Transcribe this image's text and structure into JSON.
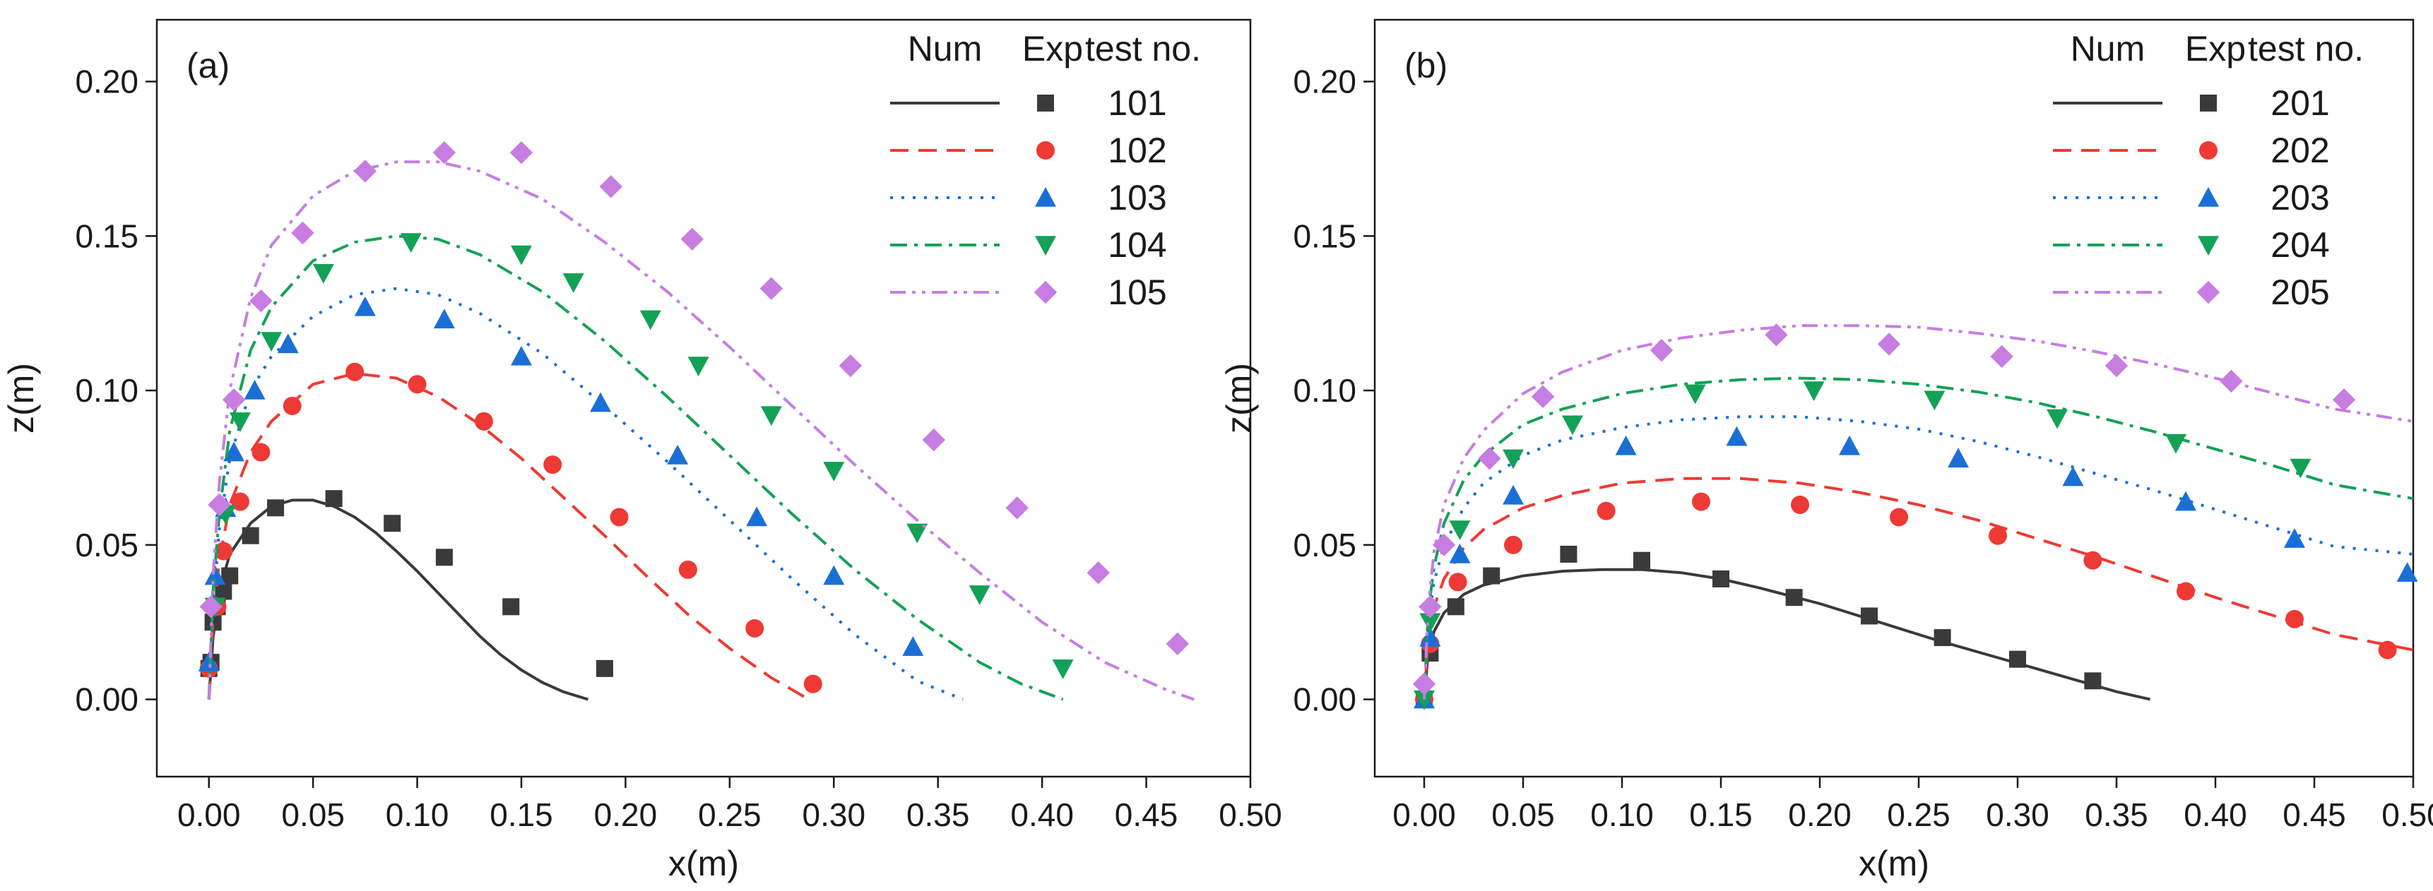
{
  "figure_description": "Jet trajectories: numerical (lines) vs experimental (markers)",
  "styles": {
    "series_colors": [
      "#3a3a3a",
      "#ee3a34",
      "#1a6fd6",
      "#13a157",
      "#c77de2"
    ],
    "line_dash_names": [
      "solid",
      "dash",
      "dot",
      "dash-dot",
      "dash-dot-dot"
    ],
    "marker_names": [
      "square",
      "circle",
      "triangle-up",
      "triangle-down",
      "diamond"
    ]
  },
  "chart_data": [
    {
      "type": "scatter",
      "panel_label": "(a)",
      "xlabel": "x(m)",
      "ylabel": "z(m)",
      "xlim": [
        -0.025,
        0.5
      ],
      "ylim": [
        -0.025,
        0.22
      ],
      "xticks": [
        "0.00",
        "0.05",
        "0.10",
        "0.15",
        "0.20",
        "0.25",
        "0.30",
        "0.35",
        "0.40",
        "0.45",
        "0.50"
      ],
      "yticks": [
        "0.00",
        "0.05",
        "0.10",
        "0.15",
        "0.20"
      ],
      "xtick_values": [
        0,
        0.05,
        0.1,
        0.15,
        0.2,
        0.25,
        0.3,
        0.35,
        0.4,
        0.45,
        0.5
      ],
      "ytick_values": [
        0,
        0.05,
        0.1,
        0.15,
        0.2
      ],
      "legend": {
        "placement": "top-right",
        "headers": [
          "Num",
          "Exp",
          "test no."
        ]
      },
      "series": [
        {
          "name": "101",
          "num": {
            "x": [
              0,
              0.002,
              0.005,
              0.01,
              0.02,
              0.03,
              0.04,
              0.05,
              0.06,
              0.07,
              0.08,
              0.09,
              0.1,
              0.11,
              0.12,
              0.13,
              0.14,
              0.15,
              0.16,
              0.17,
              0.182
            ],
            "y": [
              0,
              0.02,
              0.035,
              0.047,
              0.057,
              0.0625,
              0.0645,
              0.0645,
              0.0625,
              0.059,
              0.054,
              0.048,
              0.0415,
              0.0345,
              0.0275,
              0.0205,
              0.0145,
              0.0095,
              0.0055,
              0.0025,
              0
            ]
          },
          "exp": {
            "x": [
              0,
              0.001,
              0.002,
              0.004,
              0.007,
              0.01,
              0.02,
              0.032,
              0.06,
              0.088,
              0.113,
              0.145,
              0.19
            ],
            "y": [
              0.01,
              0.012,
              0.025,
              0.03,
              0.035,
              0.04,
              0.053,
              0.062,
              0.065,
              0.057,
              0.046,
              0.03,
              0.01
            ]
          }
        },
        {
          "name": "102",
          "num": {
            "x": [
              0,
              0.002,
              0.005,
              0.01,
              0.02,
              0.03,
              0.05,
              0.07,
              0.09,
              0.11,
              0.13,
              0.15,
              0.17,
              0.19,
              0.21,
              0.23,
              0.25,
              0.27,
              0.288
            ],
            "y": [
              0,
              0.025,
              0.045,
              0.063,
              0.08,
              0.09,
              0.102,
              0.1055,
              0.104,
              0.098,
              0.089,
              0.078,
              0.0655,
              0.053,
              0.04,
              0.0275,
              0.0165,
              0.007,
              0
            ]
          },
          "exp": {
            "x": [
              0,
              0.004,
              0.007,
              0.015,
              0.025,
              0.04,
              0.07,
              0.1,
              0.132,
              0.165,
              0.197,
              0.23,
              0.262,
              0.29
            ],
            "y": [
              0.01,
              0.03,
              0.048,
              0.064,
              0.08,
              0.095,
              0.106,
              0.102,
              0.09,
              0.076,
              0.059,
              0.042,
              0.023,
              0.005
            ]
          }
        },
        {
          "name": "103",
          "num": {
            "x": [
              0,
              0.002,
              0.005,
              0.01,
              0.02,
              0.03,
              0.05,
              0.07,
              0.09,
              0.11,
              0.13,
              0.16,
              0.19,
              0.22,
              0.25,
              0.28,
              0.31,
              0.34,
              0.362
            ],
            "y": [
              0,
              0.03,
              0.055,
              0.078,
              0.1,
              0.111,
              0.124,
              0.131,
              0.133,
              0.131,
              0.125,
              0.112,
              0.095,
              0.077,
              0.058,
              0.039,
              0.021,
              0.006,
              0
            ]
          },
          "exp": {
            "x": [
              0,
              0.003,
              0.008,
              0.012,
              0.022,
              0.038,
              0.075,
              0.113,
              0.15,
              0.188,
              0.225,
              0.263,
              0.3,
              0.338
            ],
            "y": [
              0.012,
              0.04,
              0.062,
              0.08,
              0.1,
              0.115,
              0.127,
              0.123,
              0.111,
              0.096,
              0.079,
              0.059,
              0.04,
              0.017
            ]
          }
        },
        {
          "name": "104",
          "num": {
            "x": [
              0,
              0.002,
              0.005,
              0.01,
              0.02,
              0.03,
              0.05,
              0.07,
              0.09,
              0.11,
              0.13,
              0.16,
              0.19,
              0.22,
              0.25,
              0.28,
              0.31,
              0.34,
              0.37,
              0.39,
              0.41
            ],
            "y": [
              0,
              0.035,
              0.06,
              0.087,
              0.113,
              0.127,
              0.142,
              0.148,
              0.15,
              0.149,
              0.144,
              0.132,
              0.116,
              0.098,
              0.079,
              0.06,
              0.042,
              0.026,
              0.012,
              0.005,
              0
            ]
          },
          "exp": {
            "x": [
              0.003,
              0.008,
              0.015,
              0.03,
              0.055,
              0.097,
              0.15,
              0.175,
              0.212,
              0.235,
              0.27,
              0.3,
              0.34,
              0.37,
              0.41
            ],
            "y": [
              0.03,
              0.06,
              0.09,
              0.116,
              0.138,
              0.148,
              0.144,
              0.135,
              0.123,
              0.108,
              0.092,
              0.074,
              0.054,
              0.034,
              0.01
            ]
          }
        },
        {
          "name": "105",
          "num": {
            "x": [
              0,
              0.002,
              0.005,
              0.01,
              0.02,
              0.03,
              0.05,
              0.07,
              0.09,
              0.11,
              0.13,
              0.16,
              0.19,
              0.22,
              0.25,
              0.28,
              0.31,
              0.34,
              0.37,
              0.4,
              0.43,
              0.46,
              0.473
            ],
            "y": [
              0,
              0.04,
              0.07,
              0.1,
              0.13,
              0.147,
              0.163,
              0.171,
              0.174,
              0.174,
              0.171,
              0.162,
              0.148,
              0.132,
              0.114,
              0.095,
              0.076,
              0.058,
              0.041,
              0.025,
              0.012,
              0.003,
              0
            ]
          },
          "exp": {
            "x": [
              0.001,
              0.005,
              0.012,
              0.025,
              0.045,
              0.075,
              0.113,
              0.15,
              0.193,
              0.232,
              0.27,
              0.308,
              0.348,
              0.388,
              0.427,
              0.465
            ],
            "y": [
              0.03,
              0.063,
              0.097,
              0.129,
              0.151,
              0.171,
              0.177,
              0.177,
              0.166,
              0.149,
              0.133,
              0.108,
              0.084,
              0.062,
              0.041,
              0.018
            ]
          }
        }
      ]
    },
    {
      "type": "scatter",
      "panel_label": "(b)",
      "xlabel": "x(m)",
      "ylabel": "z(m)",
      "xlim": [
        -0.025,
        0.5
      ],
      "ylim": [
        -0.025,
        0.22
      ],
      "xticks": [
        "0.00",
        "0.05",
        "0.10",
        "0.15",
        "0.20",
        "0.25",
        "0.30",
        "0.35",
        "0.40",
        "0.45",
        "0.50"
      ],
      "yticks": [
        "0.00",
        "0.05",
        "0.10",
        "0.15",
        "0.20"
      ],
      "xtick_values": [
        0,
        0.05,
        0.1,
        0.15,
        0.2,
        0.25,
        0.3,
        0.35,
        0.4,
        0.45,
        0.5
      ],
      "ytick_values": [
        0,
        0.05,
        0.1,
        0.15,
        0.2
      ],
      "legend": {
        "placement": "top-right",
        "headers": [
          "Num",
          "Exp",
          "test no."
        ]
      },
      "series": [
        {
          "name": "201",
          "num": {
            "x": [
              0,
              0.002,
              0.005,
              0.01,
              0.02,
              0.03,
              0.05,
              0.07,
              0.09,
              0.11,
              0.13,
              0.15,
              0.17,
              0.2,
              0.23,
              0.26,
              0.29,
              0.32,
              0.35,
              0.367
            ],
            "y": [
              0,
              0.015,
              0.022,
              0.028,
              0.034,
              0.037,
              0.04,
              0.0415,
              0.042,
              0.042,
              0.041,
              0.039,
              0.036,
              0.031,
              0.025,
              0.019,
              0.0135,
              0.008,
              0.0025,
              0
            ]
          },
          "exp": {
            "x": [
              0,
              0.003,
              0.016,
              0.034,
              0.073,
              0.11,
              0.15,
              0.187,
              0.225,
              0.262,
              0.3,
              0.338
            ],
            "y": [
              0,
              0.015,
              0.03,
              0.04,
              0.047,
              0.045,
              0.039,
              0.033,
              0.027,
              0.02,
              0.013,
              0.006
            ]
          }
        },
        {
          "name": "202",
          "num": {
            "x": [
              0,
              0.002,
              0.005,
              0.01,
              0.02,
              0.03,
              0.05,
              0.07,
              0.1,
              0.13,
              0.16,
              0.19,
              0.22,
              0.25,
              0.28,
              0.31,
              0.34,
              0.37,
              0.4,
              0.43,
              0.46,
              0.5
            ],
            "y": [
              0,
              0.02,
              0.03,
              0.039,
              0.049,
              0.055,
              0.062,
              0.066,
              0.07,
              0.0715,
              0.0715,
              0.07,
              0.067,
              0.063,
              0.058,
              0.052,
              0.046,
              0.0395,
              0.033,
              0.027,
              0.021,
              0.016
            ]
          },
          "exp": {
            "x": [
              0,
              0.003,
              0.017,
              0.045,
              0.092,
              0.14,
              0.19,
              0.24,
              0.29,
              0.338,
              0.385,
              0.44,
              0.487
            ],
            "y": [
              0,
              0.018,
              0.038,
              0.05,
              0.061,
              0.064,
              0.063,
              0.059,
              0.053,
              0.045,
              0.035,
              0.026,
              0.016
            ]
          }
        },
        {
          "name": "203",
          "num": {
            "x": [
              0,
              0.002,
              0.005,
              0.01,
              0.02,
              0.03,
              0.05,
              0.07,
              0.1,
              0.13,
              0.16,
              0.19,
              0.22,
              0.25,
              0.28,
              0.31,
              0.34,
              0.37,
              0.4,
              0.43,
              0.46,
              0.5
            ],
            "y": [
              0,
              0.025,
              0.038,
              0.05,
              0.062,
              0.07,
              0.079,
              0.084,
              0.088,
              0.0905,
              0.0915,
              0.0915,
              0.09,
              0.0875,
              0.0835,
              0.0785,
              0.073,
              0.0675,
              0.0615,
              0.0555,
              0.0495,
              0.047
            ]
          },
          "exp": {
            "x": [
              0,
              0.003,
              0.018,
              0.045,
              0.102,
              0.158,
              0.215,
              0.27,
              0.328,
              0.385,
              0.44,
              0.497
            ],
            "y": [
              0,
              0.02,
              0.047,
              0.066,
              0.082,
              0.085,
              0.082,
              0.078,
              0.072,
              0.064,
              0.052,
              0.041
            ]
          }
        },
        {
          "name": "204",
          "num": {
            "x": [
              0,
              0.002,
              0.005,
              0.01,
              0.02,
              0.03,
              0.05,
              0.07,
              0.1,
              0.13,
              0.16,
              0.19,
              0.22,
              0.25,
              0.28,
              0.31,
              0.34,
              0.37,
              0.4,
              0.43,
              0.46,
              0.5
            ],
            "y": [
              0,
              0.028,
              0.043,
              0.057,
              0.071,
              0.079,
              0.089,
              0.094,
              0.099,
              0.102,
              0.1035,
              0.104,
              0.1035,
              0.102,
              0.0995,
              0.096,
              0.0915,
              0.0865,
              0.081,
              0.0755,
              0.0695,
              0.065
            ]
          },
          "exp": {
            "x": [
              0,
              0.003,
              0.018,
              0.045,
              0.075,
              0.137,
              0.197,
              0.258,
              0.32,
              0.38,
              0.443
            ],
            "y": [
              0,
              0.025,
              0.055,
              0.078,
              0.089,
              0.099,
              0.1,
              0.097,
              0.091,
              0.083,
              0.075
            ]
          }
        },
        {
          "name": "205",
          "num": {
            "x": [
              0,
              0.002,
              0.005,
              0.01,
              0.02,
              0.03,
              0.05,
              0.07,
              0.1,
              0.13,
              0.16,
              0.19,
              0.22,
              0.25,
              0.28,
              0.31,
              0.34,
              0.37,
              0.4,
              0.43,
              0.46,
              0.5
            ],
            "y": [
              0,
              0.03,
              0.048,
              0.063,
              0.078,
              0.087,
              0.099,
              0.106,
              0.113,
              0.117,
              0.1195,
              0.121,
              0.121,
              0.1205,
              0.1185,
              0.116,
              0.1125,
              0.1085,
              0.104,
              0.099,
              0.094,
              0.09
            ]
          },
          "exp": {
            "x": [
              0,
              0.003,
              0.01,
              0.033,
              0.06,
              0.12,
              0.178,
              0.235,
              0.292,
              0.35,
              0.408,
              0.465
            ],
            "y": [
              0.005,
              0.03,
              0.05,
              0.078,
              0.098,
              0.113,
              0.118,
              0.115,
              0.111,
              0.108,
              0.103,
              0.097
            ]
          }
        }
      ]
    }
  ]
}
